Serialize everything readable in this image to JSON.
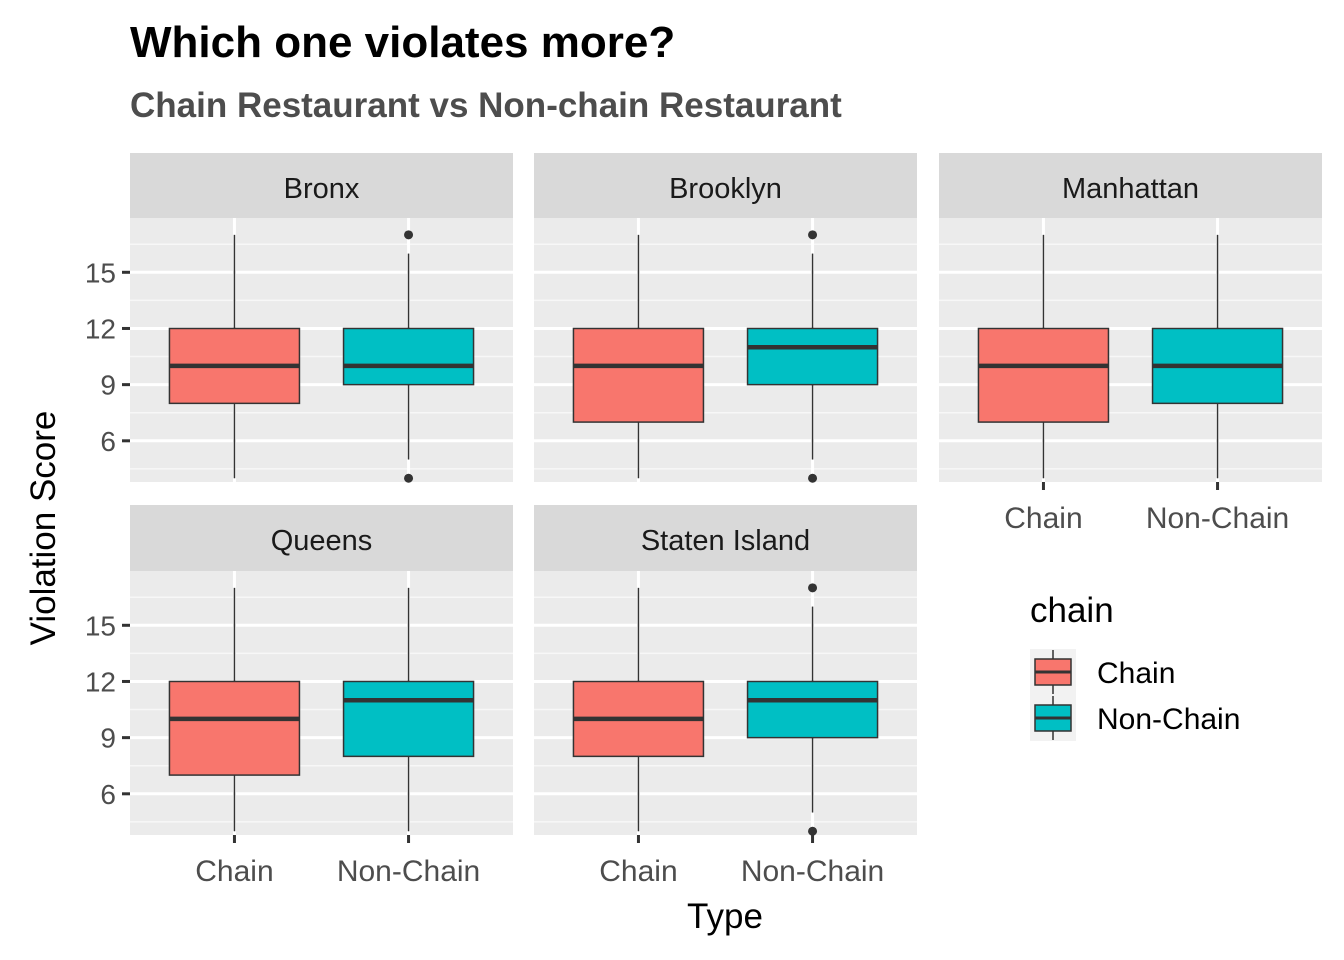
{
  "chart_data": {
    "type": "boxplot",
    "title": "Which one violates more?",
    "subtitle": "Chain Restaurant vs Non-chain Restaurant",
    "xlabel": "Type",
    "ylabel": "Violation Score",
    "ylim": [
      3.8,
      17.9
    ],
    "y_ticks": [
      6,
      9,
      12,
      15
    ],
    "categories": [
      "Chain",
      "Non-Chain"
    ],
    "legend": {
      "title": "chain",
      "position": "right",
      "entries": [
        {
          "label": "Chain",
          "color": "#f8766d"
        },
        {
          "label": "Non-Chain",
          "color": "#00bfc4"
        }
      ]
    },
    "grid": true,
    "panels": [
      {
        "name": "Bronx",
        "boxes": [
          {
            "category": "Chain",
            "min": 4,
            "q1": 8,
            "median": 10,
            "q3": 12,
            "max": 17,
            "outliers": []
          },
          {
            "category": "Non-Chain",
            "min": 5,
            "q1": 9,
            "median": 10,
            "q3": 12,
            "max": 16,
            "outliers": [
              4,
              17
            ]
          }
        ]
      },
      {
        "name": "Brooklyn",
        "boxes": [
          {
            "category": "Chain",
            "min": 4,
            "q1": 7,
            "median": 10,
            "q3": 12,
            "max": 17,
            "outliers": []
          },
          {
            "category": "Non-Chain",
            "min": 5,
            "q1": 9,
            "median": 11,
            "q3": 12,
            "max": 16,
            "outliers": [
              4,
              17
            ]
          }
        ]
      },
      {
        "name": "Manhattan",
        "boxes": [
          {
            "category": "Chain",
            "min": 4,
            "q1": 7,
            "median": 10,
            "q3": 12,
            "max": 17,
            "outliers": []
          },
          {
            "category": "Non-Chain",
            "min": 4,
            "q1": 8,
            "median": 10,
            "q3": 12,
            "max": 17,
            "outliers": []
          }
        ]
      },
      {
        "name": "Queens",
        "boxes": [
          {
            "category": "Chain",
            "min": 4,
            "q1": 7,
            "median": 10,
            "q3": 12,
            "max": 17,
            "outliers": []
          },
          {
            "category": "Non-Chain",
            "min": 4,
            "q1": 8,
            "median": 11,
            "q3": 12,
            "max": 17,
            "outliers": []
          }
        ]
      },
      {
        "name": "Staten Island",
        "boxes": [
          {
            "category": "Chain",
            "min": 4,
            "q1": 8,
            "median": 10,
            "q3": 12,
            "max": 17,
            "outliers": []
          },
          {
            "category": "Non-Chain",
            "min": 5,
            "q1": 9,
            "median": 11,
            "q3": 12,
            "max": 16,
            "outliers": [
              4,
              17
            ]
          }
        ]
      }
    ]
  }
}
